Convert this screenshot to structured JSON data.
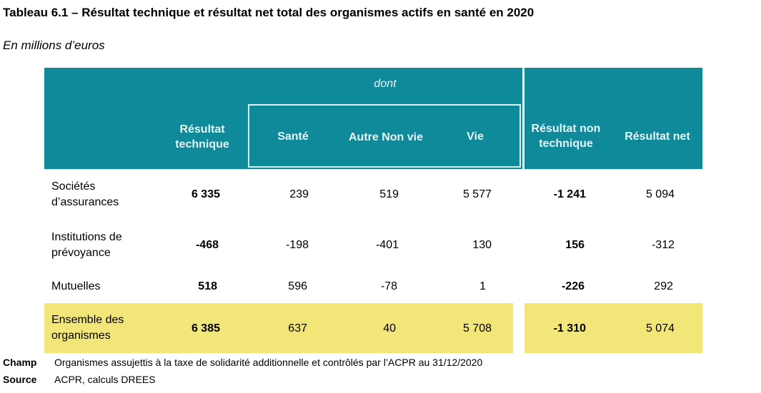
{
  "title": "Tableau 6.1 – Résultat technique et résultat net total des organismes actifs en santé en 2020",
  "subtitle": "En millions d’euros",
  "table": {
    "group_label": "dont",
    "headers": [
      "Résultat technique",
      "Santé",
      "Autre Non vie",
      "Vie",
      "Résultat non technique",
      "Résultat net"
    ],
    "rows": [
      {
        "label": "Sociétés d’assurances",
        "values": [
          "6 335",
          "239",
          "519",
          "5 577",
          "-1 241",
          "5 094"
        ]
      },
      {
        "label": "Institutions de prévoyance",
        "values": [
          "-468",
          "-198",
          "-401",
          "130",
          "156",
          "-312"
        ]
      },
      {
        "label": "Mutuelles",
        "values": [
          "518",
          "596",
          "-78",
          "1",
          "-226",
          "292"
        ]
      },
      {
        "label": "Ensemble des organismes",
        "values": [
          "6 385",
          "637",
          "40",
          "5 708",
          "-1 310",
          "5 074"
        ]
      }
    ]
  },
  "footer": {
    "champ_key": "Champ",
    "champ_text": "Organismes assujettis à la taxe de solidarité additionnelle et contrôlés par l’ACPR au 31/12/2020",
    "source_key": "Source",
    "source_text": "ACPR, calculs DREES"
  },
  "colors": {
    "header_bg": "#0f8a9a",
    "total_bg": "#f3e678"
  }
}
